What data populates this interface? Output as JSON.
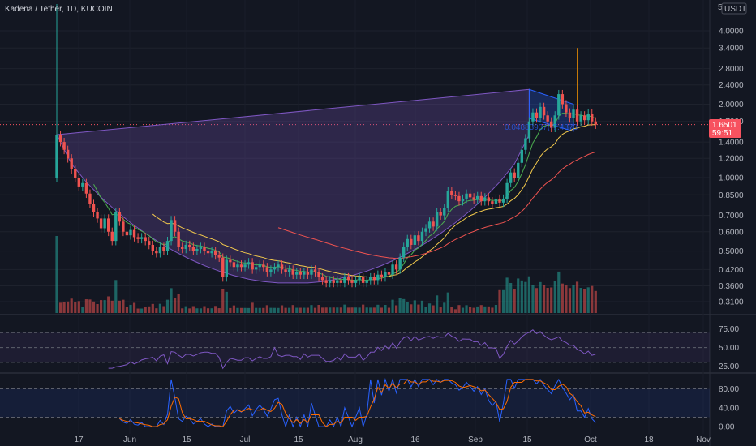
{
  "header": {
    "title": "Kadena / Tether, 1D, KUCOIN",
    "currency": "USDT",
    "corner": "5"
  },
  "price_tag": {
    "value": "1.6501",
    "countdown": "59:51"
  },
  "overlay_text": "0.04883937(-7.4373",
  "colors": {
    "up": "#26a69a",
    "down": "#ef5350",
    "pattern": "#7e57c2",
    "ema_fast": "#4caf50",
    "ema_mid": "#f2c94c",
    "ema_slow": "#ef5350",
    "rsi": "#7e57c2",
    "stoch_k": "#2962ff",
    "stoch_d": "#ff6d00",
    "bg": "#131722"
  },
  "chart_data": [
    {
      "type": "candlestick",
      "title": "Kadena / Tether, 1D, KUCOIN",
      "scale": "log",
      "x_labels": [
        "17",
        "Jun",
        "15",
        "Jul",
        "15",
        "Aug",
        "16",
        "Sep",
        "15",
        "Oct",
        "18",
        "Nov"
      ],
      "y_ticks": [
        "4.0000",
        "3.4000",
        "2.8000",
        "2.4000",
        "2.0000",
        "1.7000",
        "1.4000",
        "1.2000",
        "1.0000",
        "0.8500",
        "0.7000",
        "0.6000",
        "0.5000",
        "0.4200",
        "0.3600",
        "0.3100"
      ],
      "candles": [
        [
          1.0,
          1.5
        ],
        [
          1.5,
          1.4
        ],
        [
          1.4,
          1.3
        ],
        [
          1.3,
          1.2
        ],
        [
          1.2,
          1.08
        ],
        [
          1.08,
          1.0
        ],
        [
          1.0,
          0.92
        ],
        [
          0.92,
          0.95
        ],
        [
          0.95,
          0.86
        ],
        [
          0.86,
          0.78
        ],
        [
          0.78,
          0.72
        ],
        [
          0.72,
          0.68
        ],
        [
          0.68,
          0.62
        ],
        [
          0.62,
          0.68
        ],
        [
          0.68,
          0.6
        ],
        [
          0.6,
          0.55
        ],
        [
          0.55,
          0.72
        ],
        [
          0.72,
          0.66
        ],
        [
          0.66,
          0.6
        ],
        [
          0.6,
          0.58
        ],
        [
          0.58,
          0.61
        ],
        [
          0.61,
          0.57
        ],
        [
          0.57,
          0.56
        ],
        [
          0.56,
          0.57
        ],
        [
          0.57,
          0.55
        ],
        [
          0.55,
          0.53
        ],
        [
          0.53,
          0.5
        ],
        [
          0.5,
          0.49
        ],
        [
          0.49,
          0.52
        ],
        [
          0.52,
          0.5
        ],
        [
          0.5,
          0.55
        ],
        [
          0.55,
          0.67
        ],
        [
          0.67,
          0.6
        ],
        [
          0.6,
          0.52
        ],
        [
          0.52,
          0.51
        ],
        [
          0.51,
          0.53
        ],
        [
          0.53,
          0.52
        ],
        [
          0.52,
          0.5
        ],
        [
          0.5,
          0.51
        ],
        [
          0.51,
          0.52
        ],
        [
          0.52,
          0.5
        ],
        [
          0.5,
          0.49
        ],
        [
          0.49,
          0.5
        ],
        [
          0.5,
          0.48
        ],
        [
          0.48,
          0.47
        ],
        [
          0.47,
          0.39
        ],
        [
          0.39,
          0.46
        ],
        [
          0.46,
          0.45
        ],
        [
          0.45,
          0.43
        ],
        [
          0.43,
          0.44
        ],
        [
          0.44,
          0.43
        ],
        [
          0.43,
          0.44
        ],
        [
          0.44,
          0.45
        ],
        [
          0.45,
          0.42
        ],
        [
          0.42,
          0.43
        ],
        [
          0.43,
          0.44
        ],
        [
          0.44,
          0.43
        ],
        [
          0.43,
          0.41
        ],
        [
          0.41,
          0.42
        ],
        [
          0.42,
          0.43
        ],
        [
          0.43,
          0.44
        ],
        [
          0.44,
          0.42
        ],
        [
          0.42,
          0.41
        ],
        [
          0.41,
          0.42
        ],
        [
          0.42,
          0.4
        ],
        [
          0.4,
          0.41
        ],
        [
          0.41,
          0.4
        ],
        [
          0.4,
          0.41
        ],
        [
          0.41,
          0.4
        ],
        [
          0.4,
          0.42
        ],
        [
          0.42,
          0.41
        ],
        [
          0.41,
          0.39
        ],
        [
          0.39,
          0.38
        ],
        [
          0.38,
          0.37
        ],
        [
          0.37,
          0.38
        ],
        [
          0.38,
          0.37
        ],
        [
          0.37,
          0.38
        ],
        [
          0.38,
          0.37
        ],
        [
          0.37,
          0.39
        ],
        [
          0.39,
          0.38
        ],
        [
          0.38,
          0.37
        ],
        [
          0.37,
          0.38
        ],
        [
          0.38,
          0.39
        ],
        [
          0.39,
          0.37
        ],
        [
          0.37,
          0.38
        ],
        [
          0.38,
          0.39
        ],
        [
          0.39,
          0.38
        ],
        [
          0.38,
          0.4
        ],
        [
          0.4,
          0.39
        ],
        [
          0.39,
          0.41
        ],
        [
          0.41,
          0.4
        ],
        [
          0.4,
          0.44
        ],
        [
          0.44,
          0.42
        ],
        [
          0.42,
          0.47
        ],
        [
          0.47,
          0.52
        ],
        [
          0.52,
          0.56
        ],
        [
          0.56,
          0.53
        ],
        [
          0.53,
          0.58
        ],
        [
          0.58,
          0.55
        ],
        [
          0.55,
          0.6
        ],
        [
          0.6,
          0.62
        ],
        [
          0.62,
          0.66
        ],
        [
          0.66,
          0.63
        ],
        [
          0.63,
          0.72
        ],
        [
          0.72,
          0.7
        ],
        [
          0.7,
          0.75
        ],
        [
          0.75,
          0.88
        ],
        [
          0.88,
          0.85
        ],
        [
          0.85,
          0.84
        ],
        [
          0.84,
          0.8
        ],
        [
          0.8,
          0.82
        ],
        [
          0.82,
          0.86
        ],
        [
          0.86,
          0.83
        ],
        [
          0.83,
          0.81
        ],
        [
          0.81,
          0.84
        ],
        [
          0.84,
          0.8
        ],
        [
          0.8,
          0.83
        ],
        [
          0.83,
          0.8
        ],
        [
          0.8,
          0.78
        ],
        [
          0.78,
          0.82
        ],
        [
          0.82,
          0.79
        ],
        [
          0.79,
          0.82
        ],
        [
          0.82,
          0.95
        ],
        [
          0.95,
          1.05
        ],
        [
          1.05,
          1.0
        ],
        [
          1.0,
          1.15
        ],
        [
          1.15,
          1.3
        ],
        [
          1.3,
          1.45
        ],
        [
          1.45,
          1.7
        ],
        [
          1.7,
          1.85
        ],
        [
          1.85,
          1.75
        ],
        [
          1.75,
          1.95
        ],
        [
          1.95,
          1.8
        ],
        [
          1.8,
          1.7
        ],
        [
          1.7,
          1.6
        ],
        [
          1.6,
          1.8
        ],
        [
          1.8,
          2.2
        ],
        [
          2.2,
          2.0
        ],
        [
          2.0,
          1.85
        ],
        [
          1.85,
          1.75
        ],
        [
          1.75,
          1.9
        ],
        [
          1.9,
          1.7
        ],
        [
          1.7,
          1.8
        ],
        [
          1.8,
          1.72
        ],
        [
          1.72,
          1.83
        ],
        [
          1.83,
          1.7
        ],
        [
          1.7,
          1.65
        ]
      ],
      "series": [
        {
          "values": []
        }
      ]
    },
    {
      "type": "line",
      "y_ticks": [
        "75.00",
        "50.00",
        "25.00"
      ],
      "ylim": [
        20,
        90
      ]
    },
    {
      "type": "line",
      "y_ticks": [
        "80.00",
        "40.00",
        "0.00"
      ],
      "ylim": [
        -5,
        105
      ]
    }
  ]
}
